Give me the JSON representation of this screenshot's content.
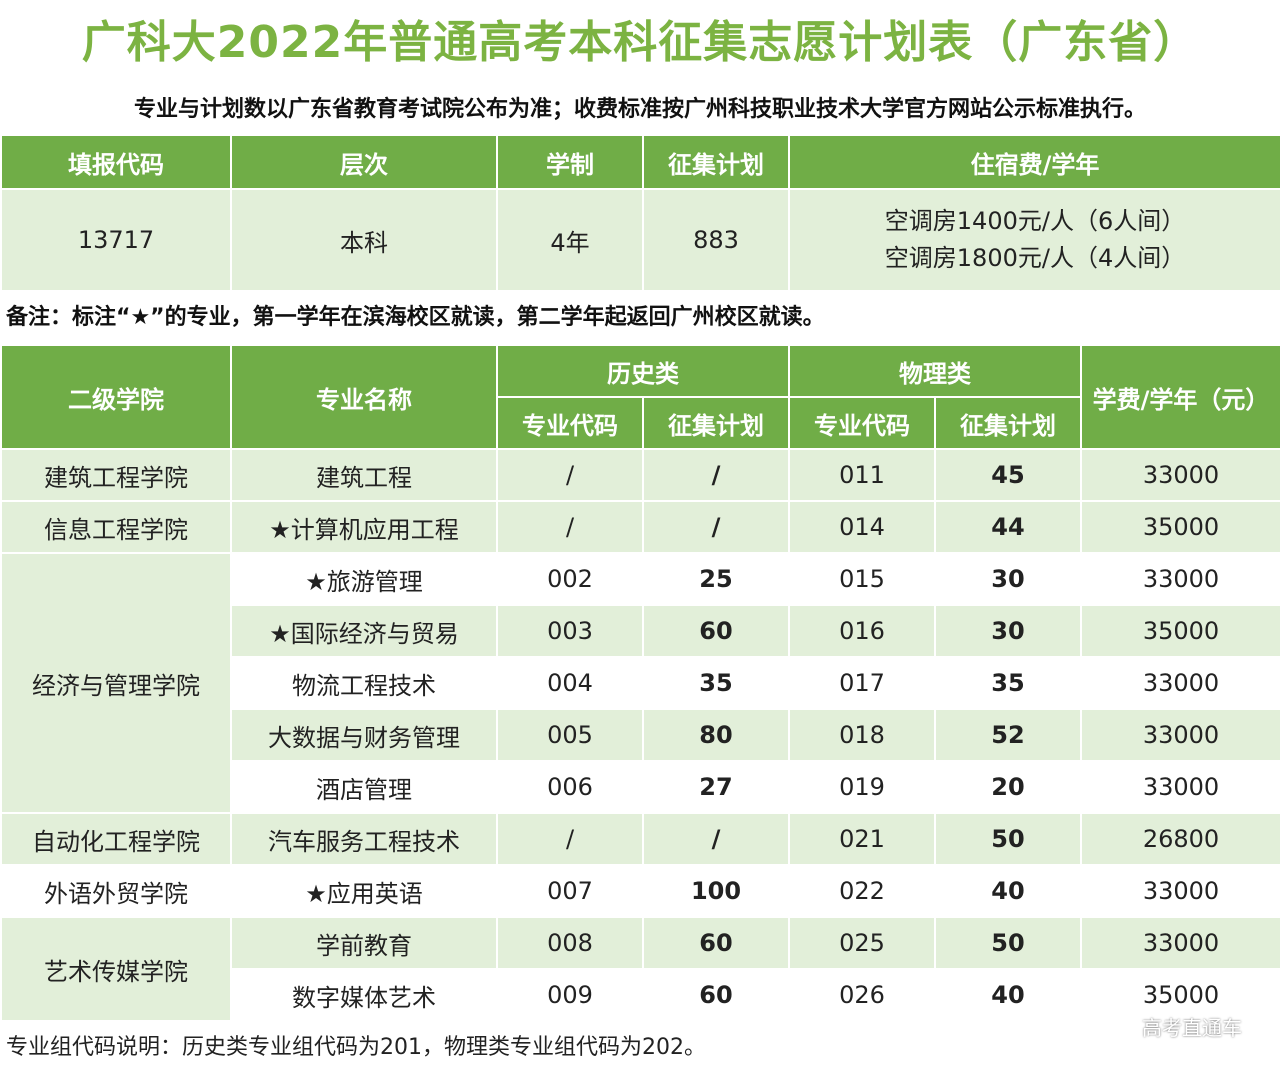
{
  "title": "广科大2022年普通高考本科征集志愿计划表（广东省）",
  "subtitle": "专业与计划数以广东省教育考试院公布为准；收费标准按广州科技职业技术大学官方网站公示标准执行。",
  "summary": {
    "headers": [
      "填报代码",
      "层次",
      "学制",
      "征集计划",
      "住宿费/学年"
    ],
    "code": "13717",
    "level": "本科",
    "duration": "4年",
    "plan": "883",
    "fees": [
      "空调房1400元/人（6人间）",
      "空调房1800元/人（4人间）"
    ]
  },
  "note": "备注：标注“★”的专业，第一学年在滨海校区就读，第二学年起返回广州校区就读。",
  "majors_table": {
    "headers": {
      "college": "二级学院",
      "major": "专业名称",
      "history": "历史类",
      "physics": "物理类",
      "tuition": "学费/学年（元）",
      "code": "专业代码",
      "plan": "征集计划"
    },
    "rows": [
      {
        "college": "建筑工程学院",
        "major": "建筑工程",
        "h_code": "/",
        "h_plan": "/",
        "p_code": "011",
        "p_plan": "45",
        "tuition": "33000"
      },
      {
        "college": "信息工程学院",
        "major": "★计算机应用工程",
        "h_code": "/",
        "h_plan": "/",
        "p_code": "014",
        "p_plan": "44",
        "tuition": "35000"
      },
      {
        "college": "经济与管理学院",
        "major": "★旅游管理",
        "h_code": "002",
        "h_plan": "25",
        "p_code": "015",
        "p_plan": "30",
        "tuition": "33000"
      },
      {
        "college": "",
        "major": "★国际经济与贸易",
        "h_code": "003",
        "h_plan": "60",
        "p_code": "016",
        "p_plan": "30",
        "tuition": "35000"
      },
      {
        "college": "",
        "major": "物流工程技术",
        "h_code": "004",
        "h_plan": "35",
        "p_code": "017",
        "p_plan": "35",
        "tuition": "33000"
      },
      {
        "college": "",
        "major": "大数据与财务管理",
        "h_code": "005",
        "h_plan": "80",
        "p_code": "018",
        "p_plan": "52",
        "tuition": "33000"
      },
      {
        "college": "",
        "major": "酒店管理",
        "h_code": "006",
        "h_plan": "27",
        "p_code": "019",
        "p_plan": "20",
        "tuition": "33000"
      },
      {
        "college": "自动化工程学院",
        "major": "汽车服务工程技术",
        "h_code": "/",
        "h_plan": "/",
        "p_code": "021",
        "p_plan": "50",
        "tuition": "26800"
      },
      {
        "college": "外语外贸学院",
        "major": "★应用英语",
        "h_code": "007",
        "h_plan": "100",
        "p_code": "022",
        "p_plan": "40",
        "tuition": "33000"
      },
      {
        "college": "艺术传媒学院",
        "major": "学前教育",
        "h_code": "008",
        "h_plan": "60",
        "p_code": "025",
        "p_plan": "50",
        "tuition": "33000"
      },
      {
        "college": "",
        "major": "数字媒体艺术",
        "h_code": "009",
        "h_plan": "60",
        "p_code": "026",
        "p_plan": "40",
        "tuition": "35000"
      }
    ]
  },
  "footer": "专业组代码说明：历史类专业组代码为201，物理类专业组代码为202。",
  "watermark": "高考直通车",
  "colors": {
    "accent": "#7cb342",
    "header_bg": "#70ad47",
    "row_light": "#e2efd9"
  }
}
